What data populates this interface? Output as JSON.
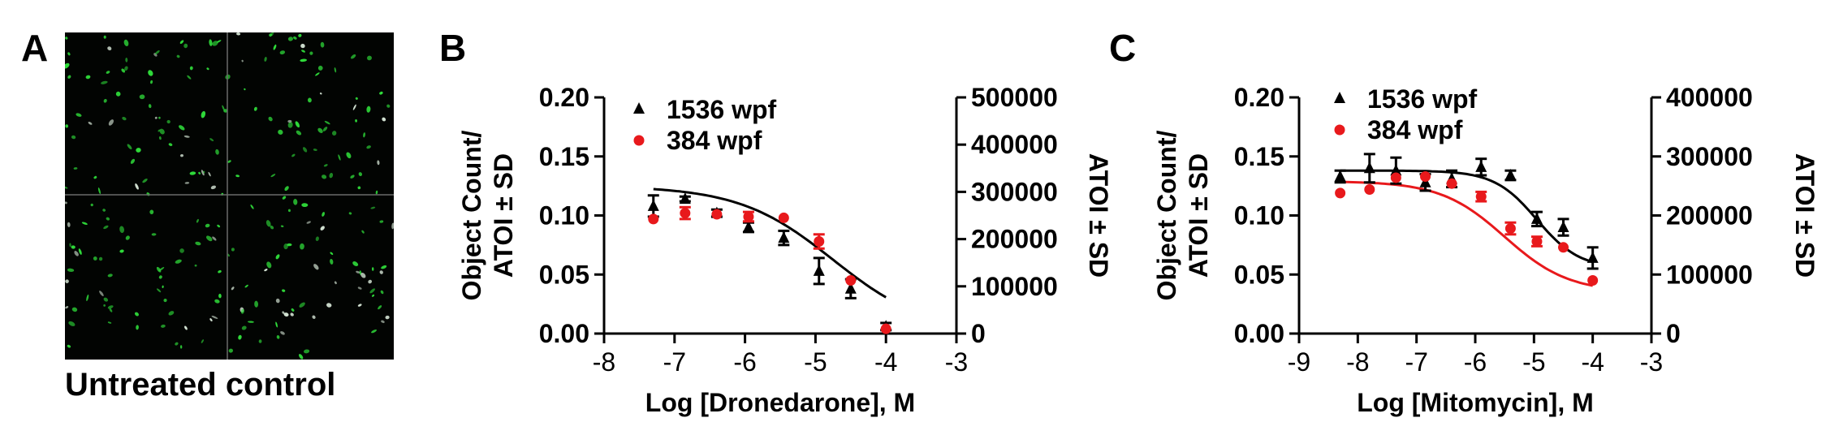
{
  "panels": {
    "a": {
      "letter": "A",
      "caption": "Untreated control"
    },
    "b": {
      "letter": "B"
    },
    "c": {
      "letter": "C"
    }
  },
  "colors": {
    "black_series": "#000000",
    "red_series": "#e8191c",
    "cell_green": "#2fdc3a",
    "cell_white": "#d8e8d8",
    "background_dark": "#020402"
  },
  "chart_data": [
    {
      "type": "scatter",
      "panel": "B",
      "xlabel": "Log [Dronedarone], M",
      "ylabel_left": [
        "Object Count/",
        "ATOI ± SD"
      ],
      "ylabel_right": "ATOI ± SD",
      "xlim": [
        -8,
        -3
      ],
      "xticks": [
        -8,
        -7,
        -6,
        -5,
        -4,
        -3
      ],
      "ylim_left": [
        0,
        0.2
      ],
      "yticks_left": [
        "0.00",
        "0.05",
        "0.10",
        "0.15",
        "0.20"
      ],
      "ylim_right": [
        0,
        500000
      ],
      "yticks_right": [
        "0",
        "100000",
        "200000",
        "300000",
        "400000",
        "500000"
      ],
      "legend_position": "top-left",
      "series": [
        {
          "name": "1536 wpf",
          "marker": "triangle",
          "color": "#000000",
          "x": [
            -7.3,
            -6.85,
            -6.4,
            -5.95,
            -5.45,
            -4.95,
            -4.5,
            -4.0
          ],
          "y": [
            0.108,
            0.114,
            0.102,
            0.09,
            0.081,
            0.053,
            0.038,
            0.006
          ],
          "err": [
            0.009,
            0.002,
            0.003,
            0.004,
            0.006,
            0.011,
            0.008,
            0.003
          ],
          "fit": {
            "top": 0.125,
            "bottom": 0.0,
            "logEC50": -4.75,
            "hill": 0.65
          }
        },
        {
          "name": "384 wpf",
          "marker": "circle",
          "color": "#e8191c",
          "x": [
            -7.3,
            -6.85,
            -6.4,
            -5.95,
            -5.45,
            -4.95,
            -4.5,
            -4.0
          ],
          "y": [
            0.097,
            0.102,
            0.101,
            0.099,
            0.098,
            0.078,
            0.045,
            0.004
          ],
          "err": [
            0.0,
            0.005,
            0.0,
            0.004,
            0.0,
            0.006,
            0.0,
            0.0
          ]
        }
      ]
    },
    {
      "type": "scatter",
      "panel": "C",
      "xlabel": "Log [Mitomycin], M",
      "ylabel_left": [
        "Object Count/",
        "ATOI ± SD"
      ],
      "ylabel_right": "ATOI ± SD",
      "xlim": [
        -9,
        -3
      ],
      "xticks": [
        -9,
        -8,
        -7,
        -6,
        -5,
        -4,
        -3
      ],
      "ylim_left": [
        0,
        0.2
      ],
      "yticks_left": [
        "0.00",
        "0.05",
        "0.10",
        "0.15",
        "0.20"
      ],
      "ylim_right": [
        0,
        400000
      ],
      "yticks_right": [
        "0",
        "100000",
        "200000",
        "300000",
        "400000"
      ],
      "legend_position": "top-left",
      "series": [
        {
          "name": "1536 wpf",
          "marker": "triangle",
          "color": "#000000",
          "x": [
            -8.3,
            -7.8,
            -7.35,
            -6.85,
            -6.4,
            -5.9,
            -5.4,
            -4.95,
            -4.5,
            -4.0
          ],
          "y": [
            0.133,
            0.14,
            0.138,
            0.128,
            0.131,
            0.141,
            0.134,
            0.097,
            0.09,
            0.064
          ],
          "err": [
            0.005,
            0.012,
            0.011,
            0.007,
            0.007,
            0.007,
            0.004,
            0.006,
            0.007,
            0.009
          ],
          "fit": {
            "top": 0.138,
            "bottom": 0.055,
            "logEC50": -4.95,
            "hill": 1.2
          }
        },
        {
          "name": "384 wpf",
          "marker": "circle",
          "color": "#e8191c",
          "x": [
            -8.3,
            -7.8,
            -7.35,
            -6.85,
            -6.4,
            -5.9,
            -5.4,
            -4.95,
            -4.5,
            -4.0
          ],
          "y": [
            0.119,
            0.122,
            0.132,
            0.133,
            0.127,
            0.116,
            0.089,
            0.078,
            0.073,
            0.045
          ],
          "err": [
            0.0,
            0.0,
            0.0,
            0.0,
            0.0,
            0.004,
            0.005,
            0.004,
            0.0,
            0.0
          ],
          "fit": {
            "top": 0.129,
            "bottom": 0.035,
            "logEC50": -5.5,
            "hill": 0.8
          }
        }
      ]
    }
  ]
}
